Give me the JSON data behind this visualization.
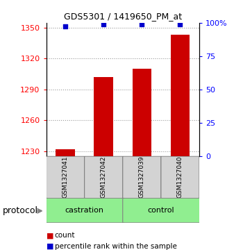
{
  "title": "GDS5301 / 1419650_PM_at",
  "samples": [
    "GSM1327041",
    "GSM1327042",
    "GSM1327039",
    "GSM1327040"
  ],
  "count_values": [
    1232,
    1302,
    1310,
    1343
  ],
  "percentile_values": [
    97,
    99,
    99,
    99
  ],
  "ylim_left": [
    1225,
    1355
  ],
  "ylim_right": [
    0,
    100
  ],
  "yticks_left": [
    1230,
    1260,
    1290,
    1320,
    1350
  ],
  "yticks_right": [
    0,
    25,
    50,
    75,
    100
  ],
  "ytick_labels_right": [
    "0",
    "25",
    "50",
    "75",
    "100%"
  ],
  "bar_color": "#cc0000",
  "dot_color": "#0000cc",
  "grid_color": "#555555",
  "protocol_groups": [
    {
      "label": "castration",
      "indices": [
        0,
        1
      ],
      "color": "#90ee90"
    },
    {
      "label": "control",
      "indices": [
        2,
        3
      ],
      "color": "#90ee90"
    }
  ],
  "legend_count_label": "count",
  "legend_percentile_label": "percentile rank within the sample",
  "protocol_label": "protocol"
}
